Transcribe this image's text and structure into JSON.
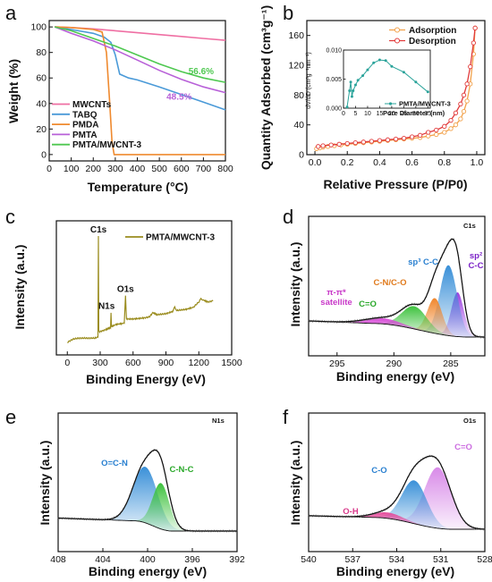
{
  "colors": {
    "mwcnts": "#ef6fa3",
    "tabq": "#4a9ad8",
    "pmda": "#ef8a2f",
    "pmta": "#b860d8",
    "pmta_mwcnt": "#4ec850",
    "adsorption": "#f2a14a",
    "desorption": "#e13a3a",
    "inset": "#2aa39a",
    "survey": "#9a8c1e"
  },
  "chart_data": [
    {
      "id": "a",
      "type": "line",
      "panel_label": "a",
      "xlabel": "Temperature (°C)",
      "ylabel": "Weight (%)",
      "xlim": [
        0,
        800
      ],
      "ylim": [
        -5,
        105
      ],
      "xticks": [
        0,
        100,
        200,
        300,
        400,
        500,
        600,
        700,
        800
      ],
      "yticks": [
        0,
        20,
        40,
        60,
        80,
        100
      ],
      "legend_position": "bottom-left",
      "series": [
        {
          "name": "MWCNTs",
          "color_key": "mwcnts",
          "x": [
            25,
            100,
            200,
            300,
            400,
            500,
            600,
            700,
            800
          ],
          "y": [
            100,
            99.5,
            98.5,
            97,
            95.5,
            94,
            92.5,
            91,
            89.5
          ]
        },
        {
          "name": "TABQ",
          "color_key": "tabq",
          "x": [
            25,
            100,
            200,
            250,
            280,
            300,
            320,
            360,
            400,
            500,
            600,
            700,
            800
          ],
          "y": [
            100,
            98,
            95,
            92,
            88,
            78,
            63,
            60,
            58.5,
            53,
            47,
            41,
            35
          ]
        },
        {
          "name": "PMDA",
          "color_key": "pmda",
          "x": [
            25,
            100,
            200,
            240,
            260,
            275,
            285,
            295,
            400,
            800
          ],
          "y": [
            100,
            99.5,
            98,
            96,
            80,
            40,
            10,
            0,
            0,
            0
          ]
        },
        {
          "name": "PMTA",
          "color_key": "pmta",
          "x": [
            25,
            100,
            200,
            300,
            400,
            500,
            600,
            700,
            800
          ],
          "y": [
            100,
            95,
            89,
            82,
            74,
            66,
            59,
            53,
            48.5
          ]
        },
        {
          "name": "PMTA/MWCNT-3",
          "color_key": "pmta_mwcnt",
          "x": [
            25,
            100,
            200,
            300,
            400,
            500,
            600,
            700,
            800
          ],
          "y": [
            100,
            97,
            91,
            85,
            78,
            71,
            65,
            60,
            56.6
          ]
        }
      ],
      "annotations": [
        {
          "text": "56.6%",
          "x": 690,
          "y": 63,
          "color_key": "pmta_mwcnt"
        },
        {
          "text": "48.5%",
          "x": 590,
          "y": 43,
          "color_key": "pmta"
        }
      ]
    },
    {
      "id": "b",
      "type": "line",
      "panel_label": "b",
      "xlabel": "Relative Pressure (P/P0)",
      "ylabel": "Quantity Adsorbed (cm³g⁻¹)",
      "xlim": [
        -0.05,
        1.05
      ],
      "ylim": [
        0,
        180
      ],
      "xticks": [
        0.0,
        0.2,
        0.4,
        0.6,
        0.8,
        1.0
      ],
      "xtick_labels": [
        "0.0",
        "0.2",
        "0.4",
        "0.6",
        "0.8",
        "1.0"
      ],
      "yticks": [
        0,
        40,
        80,
        120,
        160
      ],
      "legend_position": "top-right",
      "series": [
        {
          "name": "Adsorption",
          "color_key": "adsorption",
          "marker": "circle",
          "x": [
            0.01,
            0.03,
            0.05,
            0.08,
            0.12,
            0.16,
            0.2,
            0.25,
            0.3,
            0.35,
            0.4,
            0.45,
            0.5,
            0.55,
            0.6,
            0.65,
            0.7,
            0.75,
            0.8,
            0.84,
            0.87,
            0.9,
            0.92,
            0.94,
            0.96,
            0.98,
            0.99
          ],
          "y": [
            8,
            9,
            10,
            11,
            12,
            13,
            14,
            15,
            16,
            17,
            18,
            19,
            20,
            21,
            22,
            23,
            25,
            27,
            30,
            35,
            40,
            48,
            58,
            72,
            95,
            135,
            170
          ]
        },
        {
          "name": "Desorption",
          "color_key": "desorption",
          "marker": "circle",
          "x": [
            0.99,
            0.98,
            0.96,
            0.94,
            0.92,
            0.9,
            0.87,
            0.84,
            0.8,
            0.75,
            0.7,
            0.65,
            0.6,
            0.55,
            0.5,
            0.45,
            0.4,
            0.35,
            0.3,
            0.25,
            0.2,
            0.15,
            0.1,
            0.05,
            0.02
          ],
          "y": [
            170,
            150,
            118,
            95,
            80,
            68,
            56,
            46,
            38,
            33,
            30,
            26,
            24,
            22,
            21,
            20,
            19,
            18,
            17,
            16,
            15,
            14,
            13,
            12,
            11
          ]
        }
      ],
      "inset": {
        "xlabel": "Pore Diameter (nm)",
        "ylabel": "dV/dD (cm³g⁻¹nm⁻¹)",
        "xlim": [
          0,
          36
        ],
        "ylim": [
          0,
          0.01
        ],
        "xticks": [
          0,
          5,
          10,
          15,
          20,
          25,
          30,
          35
        ],
        "yticks": [
          0.0,
          0.005,
          0.01
        ],
        "ytick_labels": [
          "0.000",
          "0.005",
          "0.010"
        ],
        "series": [
          {
            "name": "PMTA/MWCNT-3",
            "color_key": "inset",
            "x": [
              1.5,
              2.5,
              3,
              3.5,
              4,
              5,
              6,
              8,
              10,
              12.5,
              15,
              17.5,
              20,
              25,
              30,
              35
            ],
            "y": [
              0.0002,
              0.003,
              0.0045,
              0.002,
              0.003,
              0.004,
              0.0048,
              0.0056,
              0.0066,
              0.0078,
              0.0083,
              0.0082,
              0.0072,
              0.0062,
              0.0045,
              0.0028
            ]
          }
        ]
      }
    },
    {
      "id": "c",
      "type": "line",
      "panel_label": "c",
      "xlabel": "Binding Energy (eV)",
      "ylabel": "Intensity (a.u.)",
      "xlim": [
        -100,
        1500
      ],
      "xticks": [
        0,
        300,
        600,
        900,
        1200,
        1500
      ],
      "legend_position": "top-right",
      "series": [
        {
          "name": "PMTA/MWCNT-3",
          "color_key": "survey",
          "x": [
            0,
            50,
            100,
            150,
            200,
            250,
            280,
            284,
            287,
            295,
            350,
            395,
            399,
            403,
            450,
            520,
            531,
            540,
            600,
            700,
            750,
            780,
            820,
            900,
            960,
            980,
            1000,
            1080,
            1150,
            1200,
            1220,
            1240,
            1280,
            1330
          ],
          "y": [
            0,
            3,
            4,
            4,
            4,
            4,
            5,
            100,
            12,
            10,
            12,
            14,
            28,
            15,
            17,
            18,
            44,
            22,
            22,
            23,
            24,
            28,
            26,
            27,
            29,
            33,
            30,
            31,
            33,
            38,
            41,
            40,
            38,
            39
          ]
        }
      ],
      "peak_labels": [
        {
          "text": "C1s",
          "x": 284
        },
        {
          "text": "N1s",
          "x": 399
        },
        {
          "text": "O1s",
          "x": 531
        }
      ]
    },
    {
      "id": "d",
      "type": "area",
      "panel_label": "d",
      "title": "C1s",
      "xlabel": "Binding energy (eV)",
      "ylabel": "Intensity (a.u.)",
      "xlim": [
        297.5,
        282
      ],
      "xticks": [
        295,
        290,
        285
      ],
      "peaks": [
        {
          "label": "sp² C-C",
          "center": 284.4,
          "height": 0.39,
          "width": 0.55,
          "color": "#9b3fe0"
        },
        {
          "label": "sp³ C-C",
          "center": 285.2,
          "height": 0.62,
          "width": 0.75,
          "color": "#3a90d8"
        },
        {
          "label": "C-N/C-O",
          "center": 286.4,
          "height": 0.31,
          "width": 0.65,
          "color": "#f0862c"
        },
        {
          "label": "C=O",
          "center": 288.2,
          "height": 0.2,
          "width": 1.1,
          "color": "#3ec23e"
        },
        {
          "label": "π-π* satellite",
          "center": 291.0,
          "height": 0.05,
          "width": 1.6,
          "color": "#d74ad7"
        }
      ],
      "background_level": 0.12
    },
    {
      "id": "e",
      "type": "area",
      "panel_label": "e",
      "title": "N1s",
      "xlabel": "Binding energy (eV)",
      "ylabel": "Intensity (a.u.)",
      "xlim": [
        408,
        392
      ],
      "xticks": [
        408,
        404,
        400,
        396,
        392
      ],
      "peaks": [
        {
          "label": "O=C-N",
          "center": 400.2,
          "height": 0.55,
          "width": 1.1,
          "color": "#3a90d8"
        },
        {
          "label": "C-N-C",
          "center": 398.8,
          "height": 0.45,
          "width": 0.75,
          "color": "#3ec23e"
        }
      ],
      "background_level": 0.1
    },
    {
      "id": "f",
      "type": "area",
      "panel_label": "f",
      "title": "O1s",
      "xlabel": "Binding energy (eV)",
      "ylabel": "Intensity (a.u.)",
      "xlim": [
        540,
        528
      ],
      "xticks": [
        540,
        537,
        534,
        531,
        528
      ],
      "peaks": [
        {
          "label": "C=O",
          "center": 531.2,
          "height": 0.62,
          "width": 0.9,
          "color": "#d88ae8"
        },
        {
          "label": "C-O",
          "center": 532.8,
          "height": 0.44,
          "width": 0.85,
          "color": "#3a90d8"
        },
        {
          "label": "O-H",
          "center": 534.6,
          "height": 0.06,
          "width": 1.0,
          "color": "#e54a9a"
        }
      ],
      "background_level": 0.12
    }
  ]
}
